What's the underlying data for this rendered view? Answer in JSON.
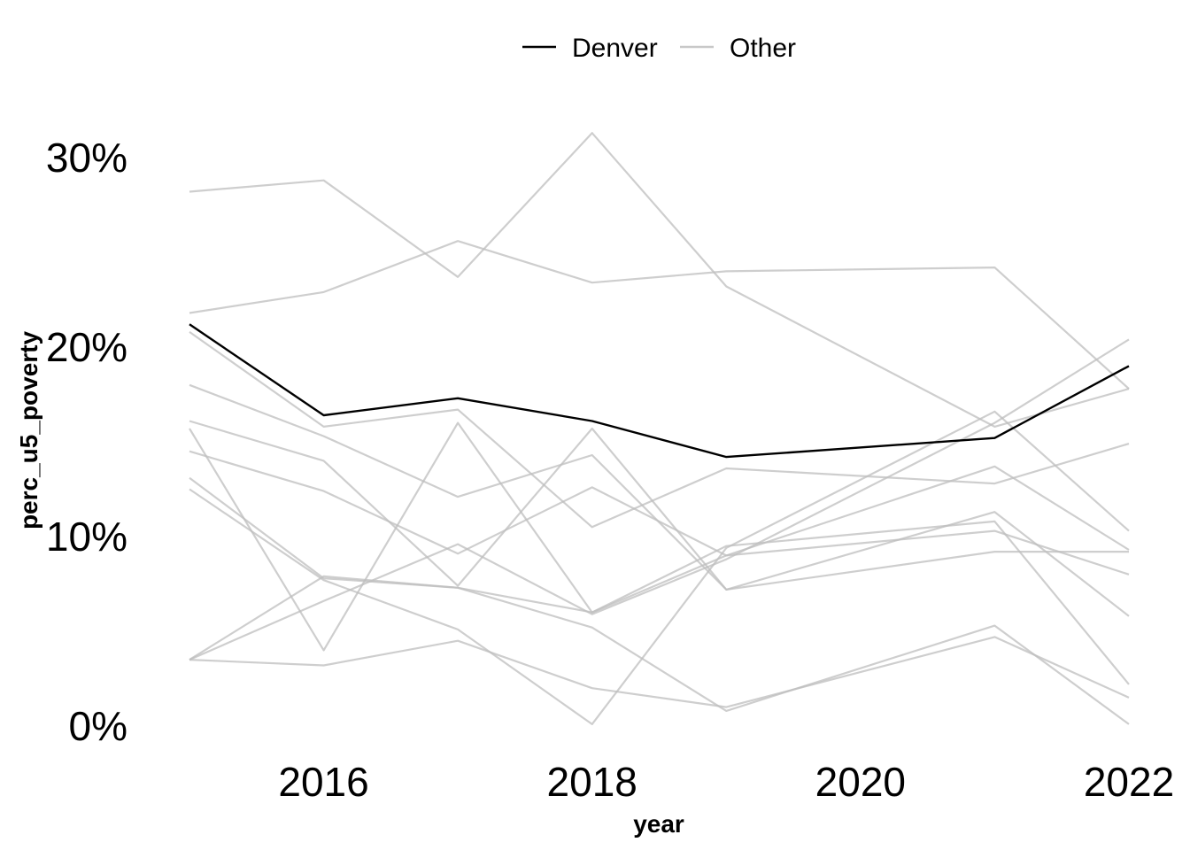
{
  "chart_data": {
    "type": "line",
    "xlabel": "year",
    "ylabel": "perc_u5_poverty",
    "xlim": [
      2015,
      2022
    ],
    "ylim": [
      0,
      0.3
    ],
    "x_ticks": [
      2016,
      2018,
      2020,
      2022
    ],
    "x_tick_labels": [
      "2016",
      "2018",
      "2020",
      "2022"
    ],
    "y_ticks": [
      0,
      0.1,
      0.2,
      0.3
    ],
    "y_tick_labels": [
      "0%",
      "10%",
      "20%",
      "30%"
    ],
    "grid": false,
    "legend_position": "top",
    "legend": [
      {
        "label": "Denver",
        "color": "#000000"
      },
      {
        "label": "Other",
        "color": "#c8c8c8"
      }
    ],
    "x": [
      2015,
      2016,
      2017,
      2018,
      2019,
      2021,
      2022
    ],
    "highlight_series": {
      "group": "Denver",
      "color": "#000000",
      "values": [
        0.212,
        0.164,
        0.173,
        0.161,
        0.142,
        0.152,
        0.19
      ]
    },
    "other_series": {
      "group": "Other",
      "color": "#bdbdbd",
      "opacity": 0.75,
      "series": [
        {
          "values": [
            0.282,
            0.288,
            0.237,
            0.313,
            0.232,
            0.158,
            0.178
          ]
        },
        {
          "values": [
            0.218,
            0.229,
            0.256,
            0.234,
            0.24,
            0.242,
            0.178
          ]
        },
        {
          "values": [
            0.208,
            0.158,
            0.167,
            0.105,
            0.136,
            0.128,
            0.149
          ]
        },
        {
          "values": [
            0.18,
            0.153,
            0.121,
            0.143,
            0.072,
            0.092,
            0.092
          ]
        },
        {
          "values": [
            0.161,
            0.14,
            0.074,
            0.157,
            0.072,
            0.113,
            0.058
          ]
        },
        {
          "values": [
            0.145,
            0.124,
            0.091,
            0.126,
            0.09,
            0.137,
            0.093
          ]
        },
        {
          "values": [
            0.157,
            0.04,
            0.16,
            0.06,
            0.09,
            0.103,
            0.08
          ]
        },
        {
          "values": [
            0.131,
            0.078,
            0.073,
            0.06,
            0.095,
            0.108,
            0.022
          ]
        },
        {
          "values": [
            0.125,
            0.077,
            0.051,
            0.001,
            0.094,
            0.166,
            0.103
          ]
        },
        {
          "values": [
            0.035,
            0.079,
            0.073,
            0.052,
            0.008,
            0.053,
            0.001
          ]
        },
        {
          "values": [
            0.035,
            0.032,
            0.045,
            0.02,
            0.01,
            0.047,
            0.015
          ]
        },
        {
          "values": [
            0.035,
            0.066,
            0.096,
            0.059,
            0.088,
            0.16,
            0.204
          ]
        }
      ]
    }
  }
}
